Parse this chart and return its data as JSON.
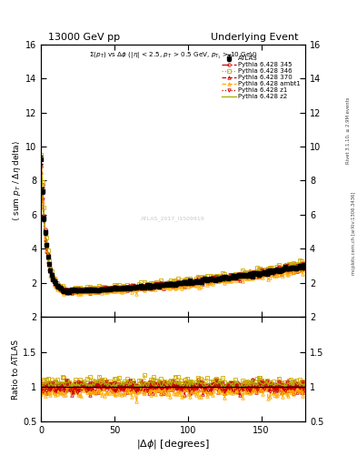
{
  "title_left": "13000 GeV pp",
  "title_right": "Underlying Event",
  "subtitle": "#Sigma(p_{T}) vs #Delta#phi (|#eta| < 2.5, p_{T} > 0.5 GeV, p_{T1} > 10 GeV)",
  "xlabel": "|#Delta #phi| [degrees]",
  "ylabel_main": "#langle sum p_{T} / #Delta#eta delta#rangle",
  "ylabel_ratio": "Ratio to ATLAS",
  "watermark": "ATLAS_2017_I1509919",
  "right_label1": "Rivet 3.1.10, #geq 2.9M events",
  "right_label2": "mcplots.cern.ch [arXiv:1306.3436]",
  "xlim": [
    0,
    180
  ],
  "ylim_main": [
    0,
    16
  ],
  "ylim_ratio": [
    0.5,
    2
  ],
  "yticks_main": [
    0,
    2,
    4,
    6,
    8,
    10,
    12,
    14,
    16
  ],
  "yticks_ratio": [
    0.5,
    1.0,
    1.5,
    2.0
  ],
  "xticks": [
    0,
    50,
    100,
    150
  ],
  "series_colors": [
    "#cc0000",
    "#ccaa00",
    "#cc0000",
    "#ffaa00",
    "#cc0000",
    "#aaaa00"
  ],
  "series_labels": [
    "Pythia 6.428 345",
    "Pythia 6.428 346",
    "Pythia 6.428 370",
    "Pythia 6.428 ambt1",
    "Pythia 6.428 z1",
    "Pythia 6.428 z2"
  ],
  "atlas_color": "#000000",
  "background_color": "#ffffff"
}
